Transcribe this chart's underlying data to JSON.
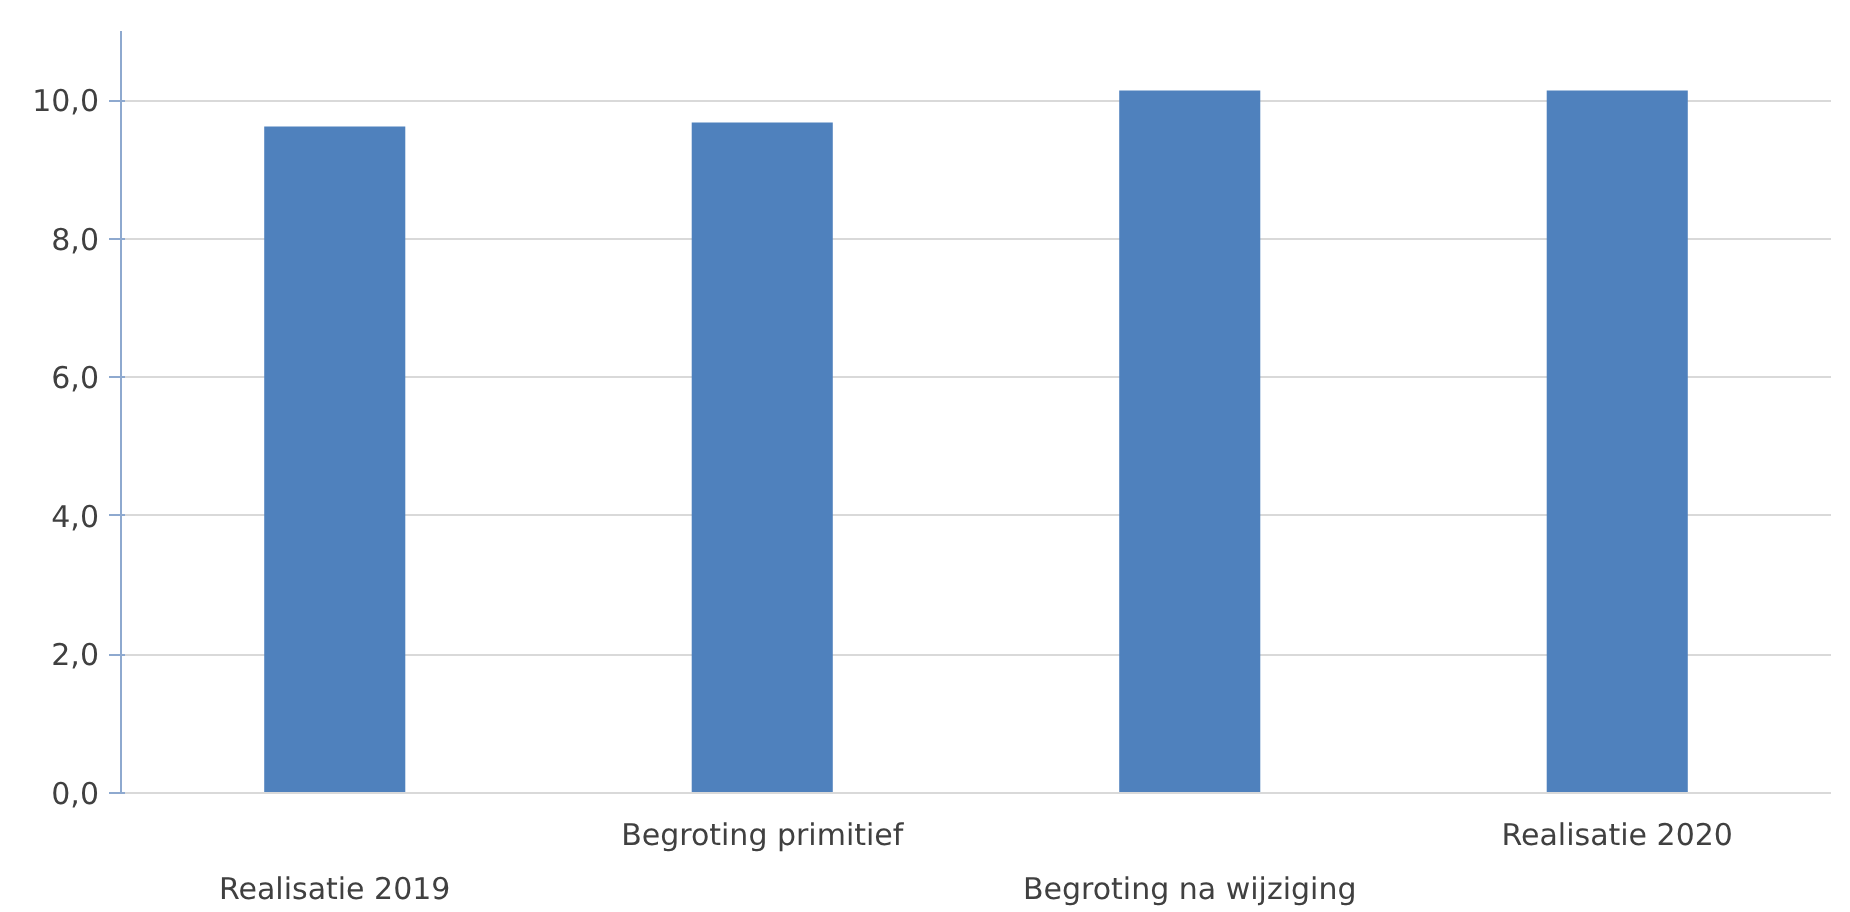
{
  "chart_data": {
    "type": "bar",
    "categories": [
      "Realisatie 2019",
      "Begroting primitief",
      "Begroting na wijziging",
      "Realisatie 2020"
    ],
    "values": [
      9.62,
      9.68,
      10.14,
      10.14
    ],
    "color": "#4f81bd",
    "ylim": [
      0,
      11
    ],
    "yticks": [
      {
        "value": 0,
        "label": "0,0"
      },
      {
        "value": 2,
        "label": "2,0"
      },
      {
        "value": 4,
        "label": "4,0"
      },
      {
        "value": 6,
        "label": "6,0"
      },
      {
        "value": 8,
        "label": "8,0"
      },
      {
        "value": 10,
        "label": "10,0"
      }
    ],
    "grid": "y"
  }
}
